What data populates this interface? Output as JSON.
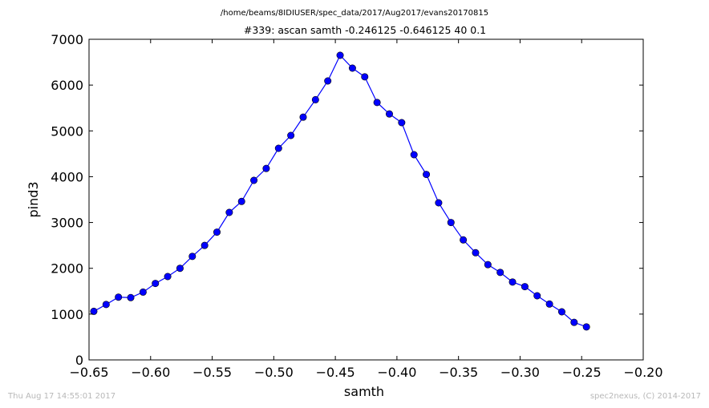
{
  "footer": {
    "timestamp": "Thu Aug 17 14:55:01 2017",
    "credit": "spec2nexus, (C) 2014-2017"
  },
  "chart_data": {
    "type": "line",
    "suptitle": "/home/beams/8IDIUSER/spec_data/2017/Aug2017/evans20170815",
    "title": "#339: ascan  samth -0.246125 -0.646125  40 0.1",
    "xlabel": "samth",
    "ylabel": "pind3",
    "xlim": [
      -0.65,
      -0.2
    ],
    "ylim": [
      0,
      7000
    ],
    "xticks": [
      "−0.65",
      "−0.60",
      "−0.55",
      "−0.50",
      "−0.45",
      "−0.40",
      "−0.35",
      "−0.30",
      "−0.25",
      "−0.20"
    ],
    "xtick_values": [
      -0.65,
      -0.6,
      -0.55,
      -0.5,
      -0.45,
      -0.4,
      -0.35,
      -0.3,
      -0.25,
      -0.2
    ],
    "yticks": [
      "0",
      "1000",
      "2000",
      "3000",
      "4000",
      "5000",
      "6000",
      "7000"
    ],
    "ytick_values": [
      0,
      1000,
      2000,
      3000,
      4000,
      5000,
      6000,
      7000
    ],
    "grid": false,
    "line_color": "#0000ff",
    "marker": "circle",
    "series": [
      {
        "x": [
          -0.646125,
          -0.636125,
          -0.626125,
          -0.616125,
          -0.606125,
          -0.596125,
          -0.586125,
          -0.576125,
          -0.566125,
          -0.556125,
          -0.546125,
          -0.536125,
          -0.526125,
          -0.516125,
          -0.506125,
          -0.496125,
          -0.486125,
          -0.476125,
          -0.466125,
          -0.456125,
          -0.446125,
          -0.436125,
          -0.426125,
          -0.416125,
          -0.406125,
          -0.396125,
          -0.386125,
          -0.376125,
          -0.366125,
          -0.356125,
          -0.346125,
          -0.336125,
          -0.326125,
          -0.316125,
          -0.306125,
          -0.296125,
          -0.286125,
          -0.276125,
          -0.266125,
          -0.256125,
          -0.246125
        ],
        "y": [
          1060,
          1210,
          1370,
          1360,
          1480,
          1670,
          1820,
          2000,
          2260,
          2500,
          2790,
          3220,
          3460,
          3920,
          4180,
          4620,
          4900,
          5300,
          5680,
          6090,
          6650,
          6370,
          6180,
          5620,
          5370,
          5180,
          4480,
          4050,
          3430,
          3000,
          2620,
          2340,
          2080,
          1910,
          1700,
          1600,
          1400,
          1220,
          1050,
          820,
          720
        ]
      }
    ]
  }
}
